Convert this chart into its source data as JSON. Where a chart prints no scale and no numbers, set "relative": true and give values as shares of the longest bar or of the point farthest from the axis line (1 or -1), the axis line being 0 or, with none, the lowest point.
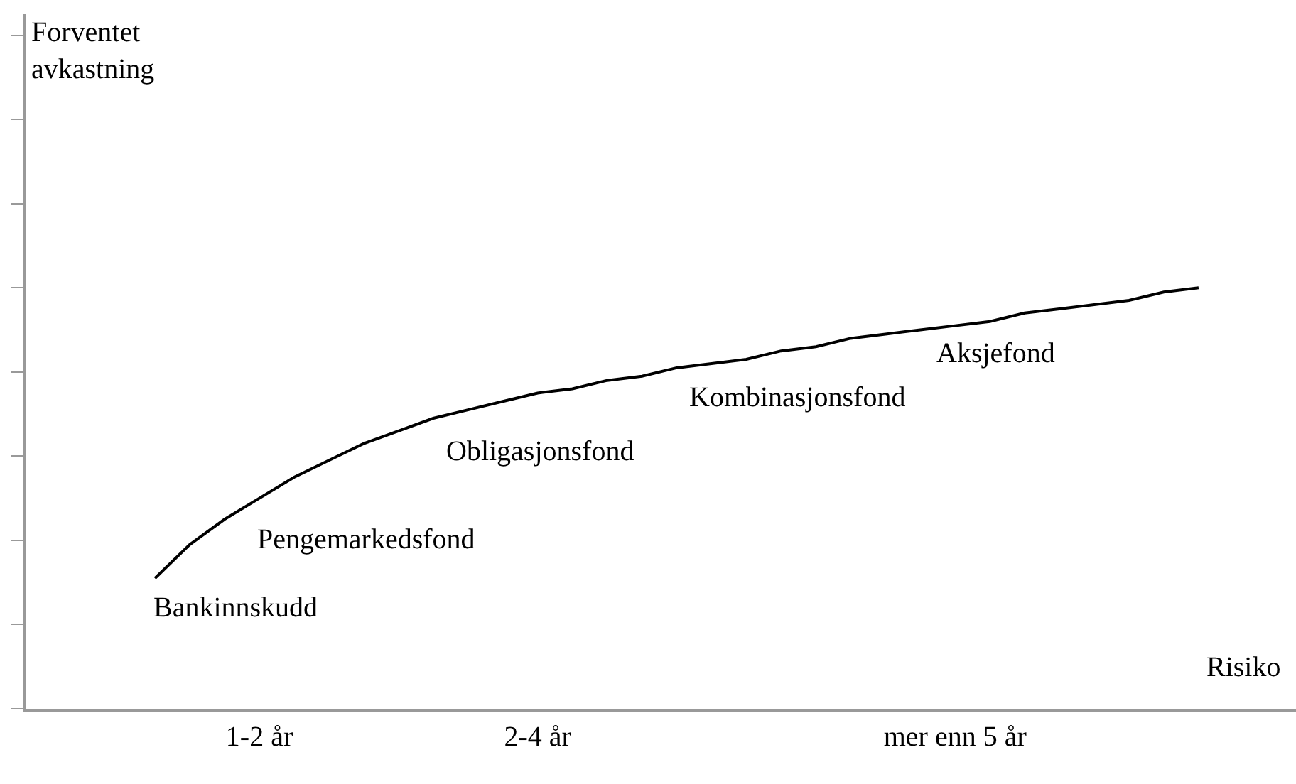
{
  "chart_data": {
    "type": "line",
    "relative": true,
    "xlabel": "Risiko",
    "categories": [
      null,
      null,
      null,
      null,
      null,
      null,
      "1-2 år",
      null,
      null,
      null,
      null,
      null,
      null,
      null,
      "2-4 år",
      null,
      null,
      null,
      null,
      null,
      null,
      null,
      null,
      null,
      null,
      null,
      "mer enn 5 år",
      null,
      null,
      null,
      null,
      null,
      null,
      null,
      null,
      null
    ],
    "series": [
      {
        "color": "#000000",
        "values": [
          null,
          null,
          null,
          0.31,
          0.39,
          0.45,
          0.5,
          0.55,
          0.59,
          0.63,
          0.66,
          0.69,
          0.71,
          0.73,
          0.75,
          0.76,
          0.78,
          0.79,
          0.81,
          0.82,
          0.83,
          0.85,
          0.86,
          0.88,
          0.89,
          0.9,
          0.91,
          0.92,
          0.94,
          0.95,
          0.96,
          0.97,
          0.99,
          1.0,
          null,
          null
        ]
      }
    ],
    "annotations": [
      "Bankinnskudd",
      "Pengemarkedsfond",
      "Obligasjonsfond",
      "Kombinasjonsfond",
      "Aksjefond",
      "Forventet avkastning"
    ],
    "marker": "none",
    "line_style": "solid"
  }
}
